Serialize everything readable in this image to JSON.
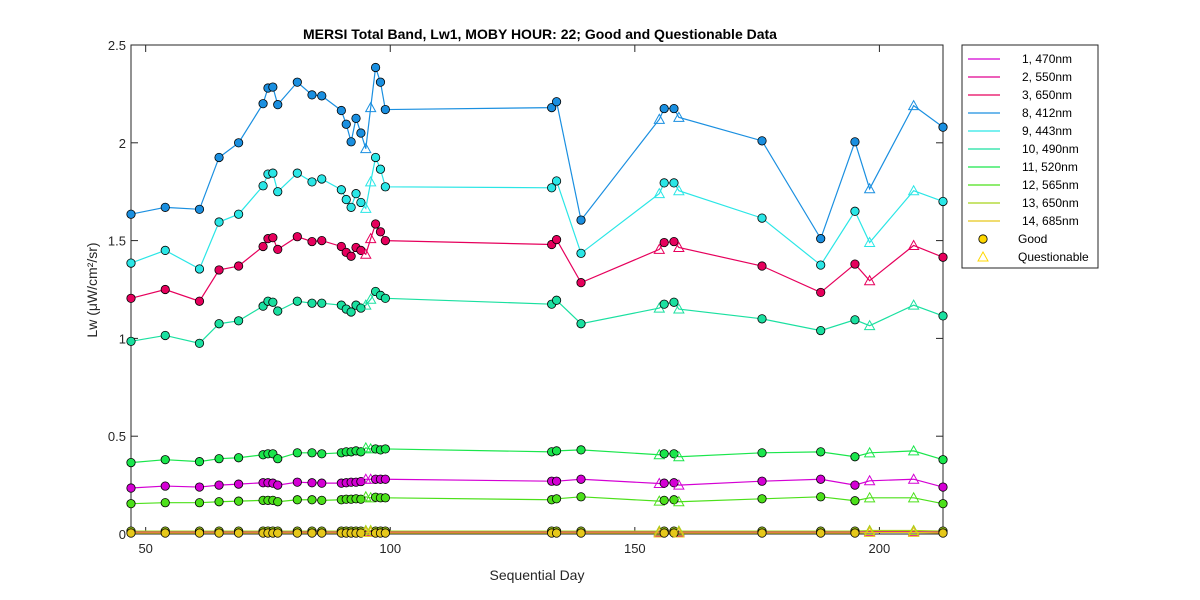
{
  "chart_data": {
    "type": "line",
    "title": "MERSI Total Band,  Lw1, MOBY HOUR: 22;  Good and Questionable Data",
    "xlabel": "Sequential Day",
    "ylabel": "Lw (μW/cm²/sr)",
    "xlim": [
      47,
      213
    ],
    "ylim": [
      0,
      2.5
    ],
    "xticks": [
      50,
      100,
      150,
      200
    ],
    "yticks": [
      0,
      0.5,
      1,
      1.5,
      2,
      2.5
    ],
    "xtick_labels": [
      "50",
      "100",
      "150",
      "200"
    ],
    "ytick_labels": [
      "0",
      "0.5",
      "1",
      "1.5",
      "2",
      "2.5"
    ],
    "grid": false,
    "legend_position": "outside-right",
    "marker_legend": {
      "good_label": "Good",
      "questionable_label": "Questionable",
      "good_color": "#FFD700",
      "questionable_color": "#FFD700"
    },
    "x": [
      47,
      54,
      61,
      65,
      69,
      74,
      75,
      76,
      77,
      81,
      84,
      86,
      90,
      91,
      92,
      93,
      94,
      95,
      96,
      97,
      98,
      99,
      133,
      134,
      139,
      155,
      156,
      158,
      159,
      176,
      188,
      195,
      198,
      207,
      213
    ],
    "questionable": [
      false,
      false,
      false,
      false,
      false,
      false,
      false,
      false,
      false,
      false,
      false,
      false,
      false,
      false,
      false,
      false,
      false,
      true,
      true,
      false,
      false,
      false,
      false,
      false,
      false,
      true,
      false,
      false,
      true,
      false,
      false,
      false,
      true,
      true,
      false
    ],
    "series": [
      {
        "name": "1, 470nm",
        "color": "#D400D4",
        "values": [
          0.235,
          0.245,
          0.24,
          0.25,
          0.255,
          0.262,
          0.262,
          0.26,
          0.25,
          0.265,
          0.262,
          0.26,
          0.26,
          0.262,
          0.265,
          0.265,
          0.268,
          0.28,
          0.28,
          0.28,
          0.28,
          0.28,
          0.27,
          0.27,
          0.28,
          0.258,
          0.26,
          0.262,
          0.25,
          0.27,
          0.28,
          0.25,
          0.272,
          0.28,
          0.24
        ]
      },
      {
        "name": "2, 550nm",
        "color": "#E0008F",
        "values": [
          0.01,
          0.01,
          0.01,
          0.01,
          0.01,
          0.01,
          0.01,
          0.01,
          0.01,
          0.01,
          0.01,
          0.01,
          0.01,
          0.01,
          0.01,
          0.01,
          0.01,
          0.012,
          0.012,
          0.01,
          0.01,
          0.01,
          0.01,
          0.01,
          0.01,
          0.01,
          0.01,
          0.01,
          0.01,
          0.01,
          0.01,
          0.01,
          0.012,
          0.012,
          0.01
        ]
      },
      {
        "name": "3, 650nm",
        "color": "#E6005C",
        "values": [
          1.205,
          1.25,
          1.19,
          1.35,
          1.37,
          1.47,
          1.51,
          1.515,
          1.455,
          1.52,
          1.495,
          1.5,
          1.47,
          1.44,
          1.42,
          1.465,
          1.45,
          1.43,
          1.51,
          1.585,
          1.545,
          1.5,
          1.48,
          1.505,
          1.285,
          1.455,
          1.49,
          1.495,
          1.465,
          1.37,
          1.235,
          1.38,
          1.295,
          1.475,
          1.415
        ]
      },
      {
        "name": "8, 412nm",
        "color": "#1A8FE0",
        "values": [
          1.635,
          1.67,
          1.66,
          1.925,
          2.0,
          2.2,
          2.28,
          2.285,
          2.195,
          2.31,
          2.245,
          2.24,
          2.165,
          2.095,
          2.005,
          2.125,
          2.05,
          1.97,
          2.18,
          2.385,
          2.31,
          2.17,
          2.18,
          2.21,
          1.605,
          2.12,
          2.175,
          2.175,
          2.13,
          2.01,
          1.51,
          2.005,
          1.765,
          2.19,
          2.08
        ]
      },
      {
        "name": "9, 443nm",
        "color": "#2AE6E6",
        "values": [
          1.385,
          1.45,
          1.355,
          1.595,
          1.635,
          1.78,
          1.84,
          1.845,
          1.75,
          1.845,
          1.8,
          1.815,
          1.76,
          1.71,
          1.67,
          1.74,
          1.695,
          1.665,
          1.8,
          1.925,
          1.865,
          1.775,
          1.77,
          1.805,
          1.435,
          1.74,
          1.795,
          1.795,
          1.755,
          1.615,
          1.375,
          1.65,
          1.49,
          1.755,
          1.7
        ]
      },
      {
        "name": "10, 490nm",
        "color": "#1AE0A0",
        "values": [
          0.985,
          1.015,
          0.975,
          1.075,
          1.09,
          1.165,
          1.19,
          1.185,
          1.14,
          1.19,
          1.18,
          1.18,
          1.17,
          1.15,
          1.135,
          1.17,
          1.155,
          1.17,
          1.2,
          1.24,
          1.22,
          1.205,
          1.175,
          1.195,
          1.075,
          1.155,
          1.175,
          1.185,
          1.15,
          1.1,
          1.04,
          1.095,
          1.065,
          1.17,
          1.115
        ]
      },
      {
        "name": "11, 520nm",
        "color": "#1AE64C",
        "values": [
          0.365,
          0.38,
          0.37,
          0.385,
          0.39,
          0.405,
          0.41,
          0.41,
          0.385,
          0.415,
          0.415,
          0.41,
          0.415,
          0.42,
          0.42,
          0.425,
          0.42,
          0.44,
          0.435,
          0.435,
          0.43,
          0.435,
          0.42,
          0.425,
          0.43,
          0.405,
          0.41,
          0.41,
          0.395,
          0.415,
          0.42,
          0.395,
          0.415,
          0.425,
          0.38
        ]
      },
      {
        "name": "12, 565nm",
        "color": "#4CE01A",
        "values": [
          0.155,
          0.16,
          0.16,
          0.165,
          0.168,
          0.172,
          0.172,
          0.172,
          0.165,
          0.175,
          0.175,
          0.172,
          0.175,
          0.178,
          0.178,
          0.18,
          0.178,
          0.19,
          0.185,
          0.188,
          0.185,
          0.185,
          0.175,
          0.18,
          0.19,
          0.168,
          0.172,
          0.175,
          0.165,
          0.18,
          0.19,
          0.17,
          0.185,
          0.185,
          0.155
        ]
      },
      {
        "name": "13, 650nm",
        "color": "#A6D41A",
        "values": [
          0.015,
          0.015,
          0.015,
          0.015,
          0.015,
          0.015,
          0.015,
          0.015,
          0.015,
          0.015,
          0.015,
          0.015,
          0.015,
          0.015,
          0.015,
          0.015,
          0.015,
          0.018,
          0.018,
          0.015,
          0.015,
          0.015,
          0.015,
          0.015,
          0.015,
          0.015,
          0.015,
          0.015,
          0.015,
          0.015,
          0.015,
          0.015,
          0.018,
          0.018,
          0.015
        ]
      },
      {
        "name": "14, 685nm",
        "color": "#E6C81A",
        "values": [
          0.005,
          0.005,
          0.005,
          0.005,
          0.005,
          0.005,
          0.005,
          0.005,
          0.005,
          0.005,
          0.005,
          0.005,
          0.005,
          0.005,
          0.005,
          0.005,
          0.005,
          0.008,
          0.008,
          0.005,
          0.005,
          0.005,
          0.005,
          0.005,
          0.005,
          0.005,
          0.005,
          0.005,
          0.005,
          0.005,
          0.005,
          0.005,
          0.008,
          0.008,
          0.005
        ]
      }
    ]
  }
}
